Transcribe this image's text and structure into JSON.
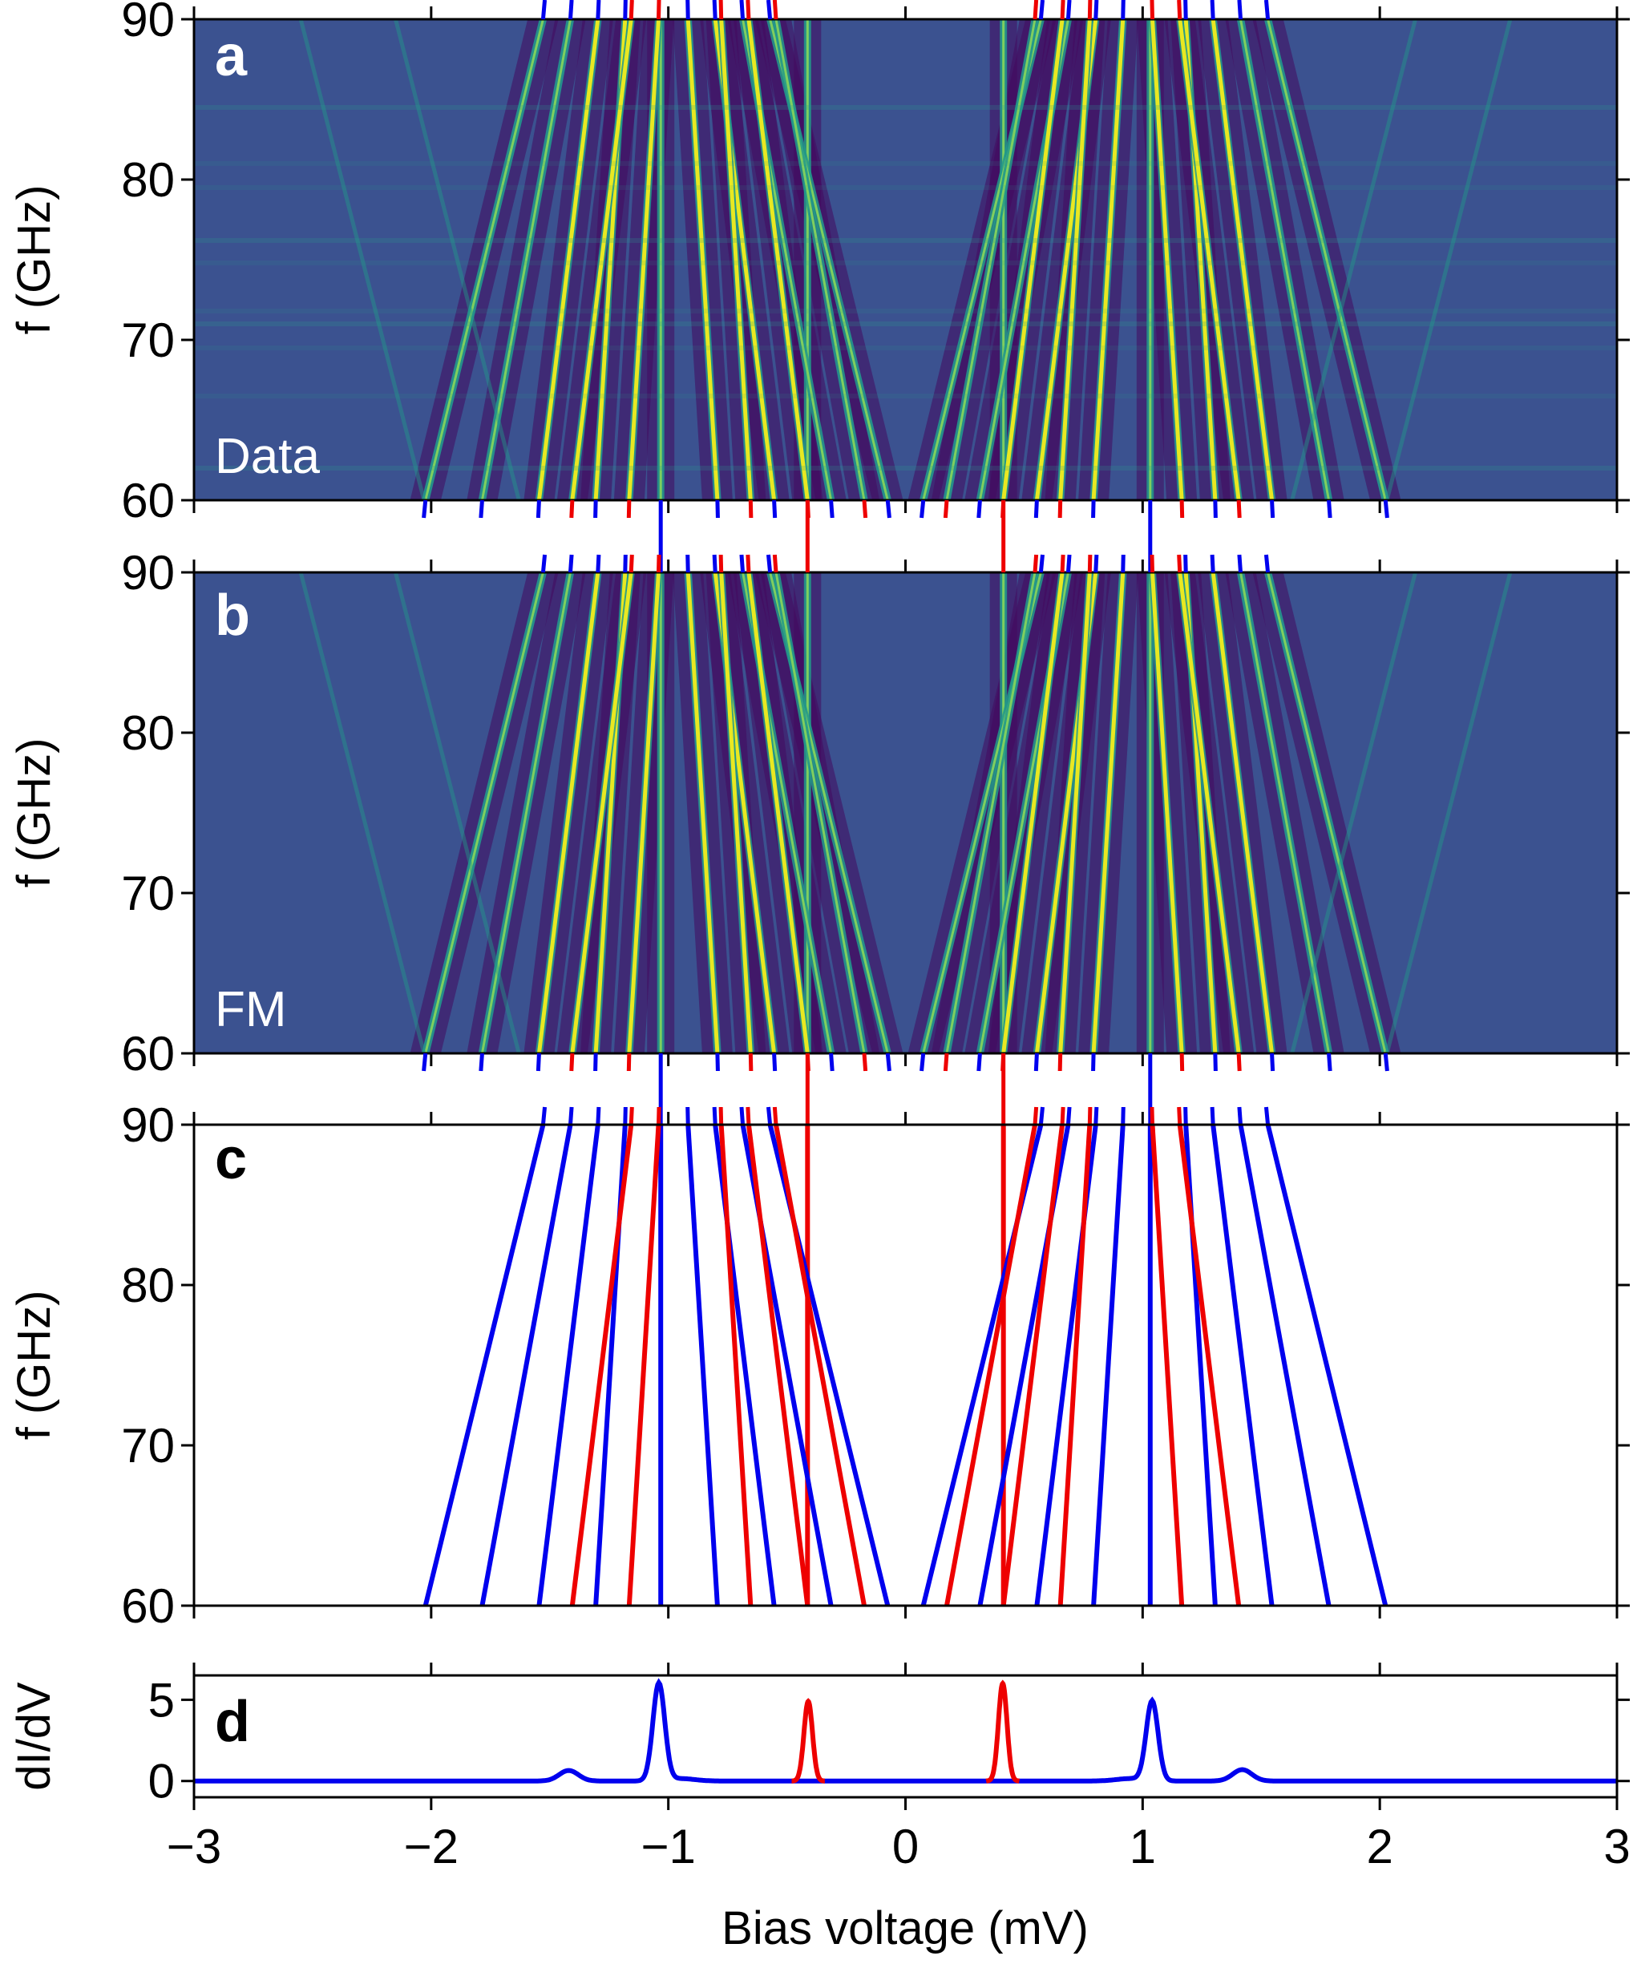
{
  "chart_data": [
    {
      "panel": "a",
      "type": "heatmap",
      "tag": "Data",
      "xlim": [
        -3,
        3
      ],
      "ylim": [
        60,
        90
      ],
      "yticks": [
        60,
        70,
        80,
        90
      ],
      "ylabel": "f (GHz)",
      "colormap": "viridis"
    },
    {
      "panel": "b",
      "type": "heatmap",
      "tag": "FM",
      "xlim": [
        -3,
        3
      ],
      "ylim": [
        60,
        90
      ],
      "yticks": [
        60,
        70,
        80,
        90
      ],
      "ylabel": "f (GHz)",
      "colormap": "viridis"
    },
    {
      "panel": "c",
      "type": "line",
      "xlim": [
        -3,
        3
      ],
      "ylim": [
        60,
        90
      ],
      "yticks": [
        60,
        70,
        80,
        90
      ],
      "ylabel": "f (GHz)",
      "x_unit": "mV",
      "y_unit": "GHz",
      "series": [
        {
          "color": "blue",
          "v0": -1.032,
          "slope": 0.0
        },
        {
          "color": "blue",
          "v0": 1.032,
          "slope": 0.0
        },
        {
          "color": "red",
          "v0": -0.413,
          "slope": 0.0
        },
        {
          "color": "red",
          "v0": 0.413,
          "slope": 0.0
        },
        {
          "color": "blue",
          "v0": -2.024,
          "slope": 0.01653
        },
        {
          "color": "blue",
          "v0": -1.785,
          "slope": 0.0124
        },
        {
          "color": "blue",
          "v0": -1.545,
          "slope": 0.00827
        },
        {
          "color": "blue",
          "v0": -1.306,
          "slope": 0.00413
        },
        {
          "color": "blue",
          "v0": -0.793,
          "slope": -0.00413
        },
        {
          "color": "blue",
          "v0": -0.554,
          "slope": -0.00827
        },
        {
          "color": "blue",
          "v0": -0.314,
          "slope": -0.0124
        },
        {
          "color": "blue",
          "v0": -0.075,
          "slope": -0.01653
        },
        {
          "color": "blue",
          "v0": 2.024,
          "slope": -0.01653
        },
        {
          "color": "blue",
          "v0": 1.785,
          "slope": -0.0124
        },
        {
          "color": "blue",
          "v0": 1.545,
          "slope": -0.00827
        },
        {
          "color": "blue",
          "v0": 1.306,
          "slope": -0.00413
        },
        {
          "color": "blue",
          "v0": 0.793,
          "slope": 0.00413
        },
        {
          "color": "blue",
          "v0": 0.554,
          "slope": 0.00827
        },
        {
          "color": "blue",
          "v0": 0.314,
          "slope": 0.0124
        },
        {
          "color": "blue",
          "v0": 0.075,
          "slope": 0.01653
        },
        {
          "color": "red",
          "v0": -1.405,
          "slope": 0.00827
        },
        {
          "color": "red",
          "v0": -1.165,
          "slope": 0.00413
        },
        {
          "color": "red",
          "v0": -0.653,
          "slope": -0.00413
        },
        {
          "color": "red",
          "v0": -0.413,
          "slope": -0.00827
        },
        {
          "color": "red",
          "v0": -0.174,
          "slope": -0.0124
        },
        {
          "color": "red",
          "v0": 1.405,
          "slope": -0.00827
        },
        {
          "color": "red",
          "v0": 1.165,
          "slope": -0.00413
        },
        {
          "color": "red",
          "v0": 0.653,
          "slope": 0.00413
        },
        {
          "color": "red",
          "v0": 0.413,
          "slope": 0.00827
        },
        {
          "color": "red",
          "v0": 0.174,
          "slope": 0.0124
        }
      ]
    },
    {
      "panel": "d",
      "type": "line",
      "xlim": [
        -3,
        3
      ],
      "ylim": [
        -1,
        6.5
      ],
      "yticks": [
        0,
        5
      ],
      "ylabel": "dI/dV",
      "xlabel": "Bias voltage (mV)",
      "xticks": [
        -3,
        -2,
        -1,
        0,
        1,
        2,
        3
      ],
      "xtick_labels": [
        "−3",
        "−2",
        "−1",
        "0",
        "1",
        "2",
        "3"
      ],
      "series": [
        {
          "color": "blue",
          "peaks": [
            {
              "x": -1.04,
              "height": 6.0,
              "width": 0.025
            },
            {
              "x": 1.04,
              "height": 4.9,
              "width": 0.025
            },
            {
              "x": -1.42,
              "height": 0.65,
              "width": 0.04
            },
            {
              "x": 1.42,
              "height": 0.7,
              "width": 0.04
            }
          ],
          "baseline": 0.0
        },
        {
          "color": "red",
          "peaks": [
            {
              "x": -0.41,
              "height": 4.9,
              "width": 0.018
            },
            {
              "x": 0.41,
              "height": 6.0,
              "width": 0.018
            }
          ],
          "baseline": 0.0
        }
      ]
    }
  ],
  "colors": {
    "blue": "#0000ee",
    "red": "#ee0000",
    "heat_bg": "#3b5290",
    "heat_low": "#440a5e",
    "heat_mid": "#22998a",
    "heat_high": "#e8e822"
  }
}
